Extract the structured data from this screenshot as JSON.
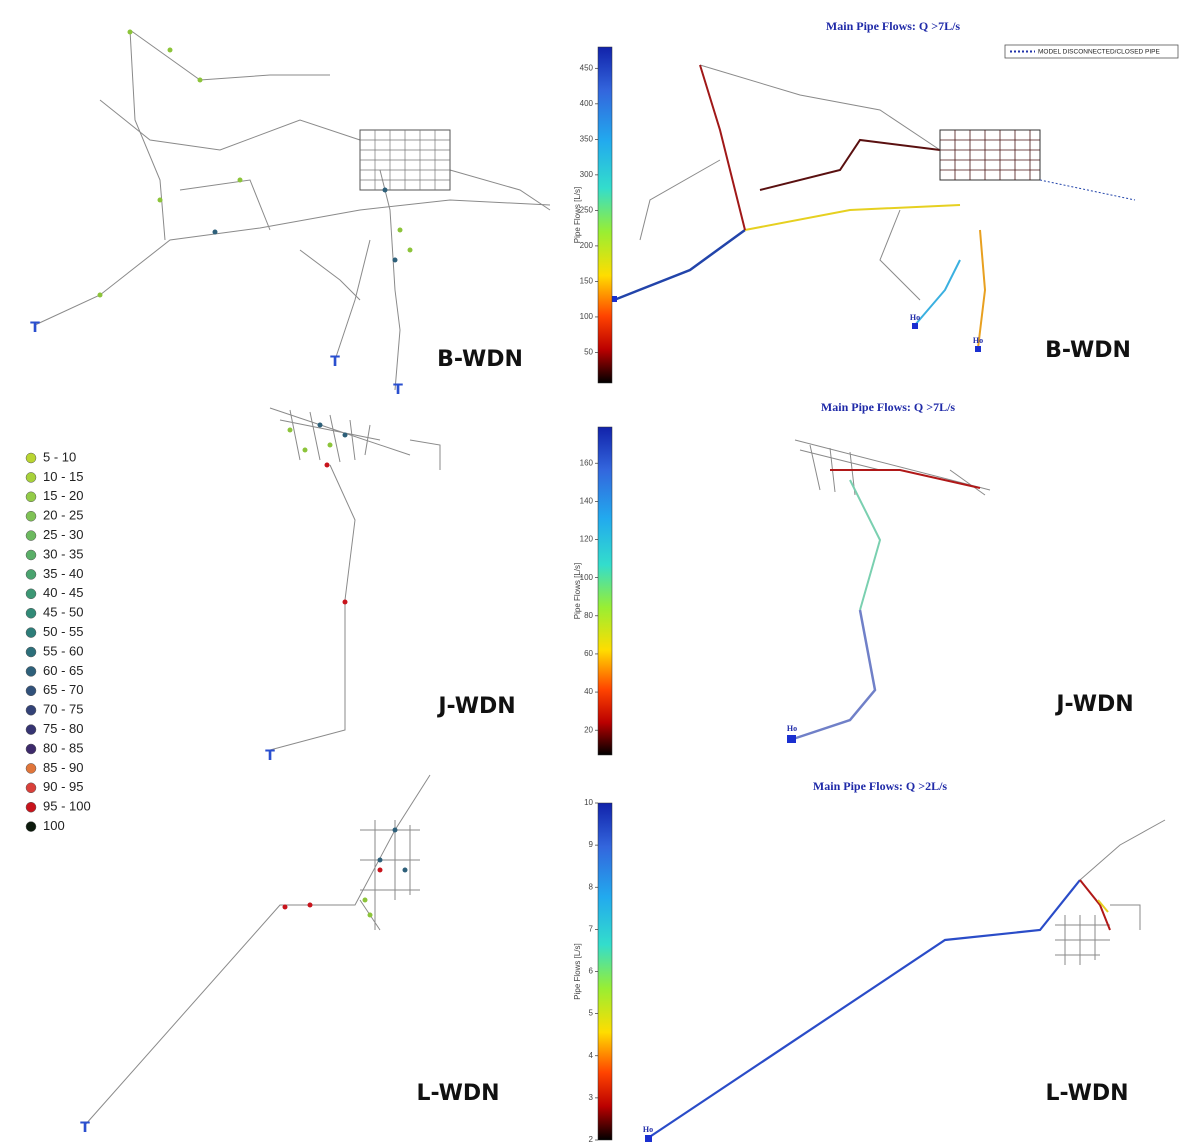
{
  "legend": {
    "items": [
      {
        "label": "5 - 10",
        "color": "#b9d531"
      },
      {
        "label": "10 - 15",
        "color": "#a7d13a"
      },
      {
        "label": "15 - 20",
        "color": "#93cb48"
      },
      {
        "label": "20 - 25",
        "color": "#7fc255"
      },
      {
        "label": "25 - 30",
        "color": "#6cb95f"
      },
      {
        "label": "30 - 35",
        "color": "#5aaf68"
      },
      {
        "label": "35 - 40",
        "color": "#4aa36f"
      },
      {
        "label": "40 - 45",
        "color": "#3c9774"
      },
      {
        "label": "45 - 50",
        "color": "#328a77"
      },
      {
        "label": "50 - 55",
        "color": "#2d7d79"
      },
      {
        "label": "55 - 60",
        "color": "#2c6f7a"
      },
      {
        "label": "60 - 65",
        "color": "#2e607a"
      },
      {
        "label": "65 - 70",
        "color": "#31517a"
      },
      {
        "label": "70 - 75",
        "color": "#334277"
      },
      {
        "label": "75 - 80",
        "color": "#363472"
      },
      {
        "label": "80 - 85",
        "color": "#3d2a6b"
      },
      {
        "label": "85 - 90",
        "color": "#e0753a"
      },
      {
        "label": "90 - 95",
        "color": "#d9403a"
      },
      {
        "label": "95 - 100",
        "color": "#c8141c"
      },
      {
        "label": "100",
        "color": "#0c1a0c"
      }
    ]
  },
  "maps": [
    {
      "label": "B-WDN"
    },
    {
      "label": "J-WDN"
    },
    {
      "label": "L-WDN"
    }
  ],
  "flow_maps": [
    {
      "title": "Main Pipe Flows: Q >7L/s",
      "label": "B-WDN",
      "legend": "MODEL DISCONNECTED/CLOSED PIPE",
      "source_labels": [
        "Ho",
        "Ho"
      ],
      "colorbar": {
        "axis_label": "Pipe Flows [L/s]",
        "lim": [
          7,
          480
        ],
        "ticks": [
          50,
          100,
          150,
          200,
          250,
          300,
          350,
          400,
          450
        ]
      }
    },
    {
      "title": "Main Pipe Flows: Q >7L/s",
      "label": "J-WDN",
      "source_labels": [
        "Ho"
      ],
      "colorbar": {
        "axis_label": "Pipe Flows [L/s]",
        "lim": [
          7,
          179
        ],
        "ticks": [
          20,
          40,
          60,
          80,
          100,
          120,
          140,
          160
        ]
      }
    },
    {
      "title": "Main Pipe Flows: Q >2L/s",
      "label": "L-WDN",
      "source_labels": [
        "Ho"
      ],
      "colorbar": {
        "axis_label": "Pipe Flows [L/s]",
        "lim": [
          2,
          10
        ],
        "ticks": [
          2,
          3,
          4,
          5,
          6,
          7,
          8,
          9,
          10
        ]
      }
    }
  ]
}
